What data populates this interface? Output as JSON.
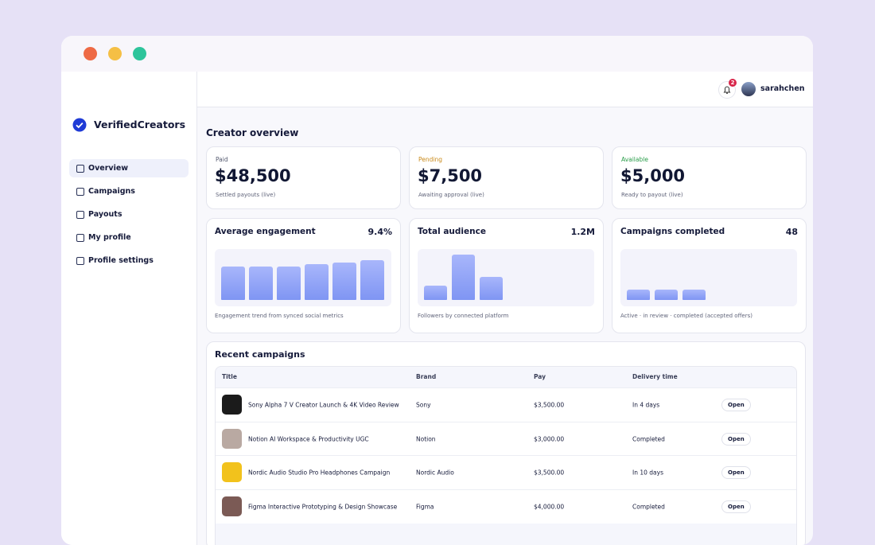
{
  "app": {
    "brand": "VerifiedCreators",
    "nav": [
      "Overview",
      "Campaigns",
      "Payouts",
      "My profile",
      "Profile settings"
    ],
    "user": {
      "name": "sarahchen",
      "notifications": 2
    },
    "overview_title": "Creator overview",
    "stats": [
      {
        "label": "Paid",
        "value": "$48,500",
        "note": "Settled payouts (live)"
      },
      {
        "label": "Pending",
        "value": "$7,500",
        "note": "Awaiting approval (live)"
      },
      {
        "label": "Available",
        "value": "$5,000",
        "note": "Ready to payout (live)"
      }
    ],
    "metrics": [
      {
        "title": "Average engagement",
        "value": "9.4%",
        "caption": "Engagement trend from synced social metrics"
      },
      {
        "title": "Total audience",
        "value": "1.2M",
        "caption": "Followers by connected platform"
      },
      {
        "title": "Campaigns completed",
        "value": "48",
        "caption": "Active · in review · completed (accepted offers)"
      }
    ],
    "campaigns": {
      "title": "Recent campaigns",
      "columns": [
        "Title",
        "Brand",
        "Pay",
        "Delivery time"
      ],
      "rows": [
        [
          "Sony Alpha 7 V Creator Launch & 4K Video Review",
          "Sony",
          "$3,500.00",
          "In 4 days",
          "Open"
        ],
        [
          "Notion AI Workspace & Productivity UGC",
          "Notion",
          "$3,000.00",
          "Completed",
          "Open"
        ],
        [
          "Nordic Audio Studio Pro Headphones Campaign",
          "Nordic Audio",
          "$3,500.00",
          "In 10 days",
          "Open"
        ],
        [
          "Figma Interactive Prototyping & Design Showcase",
          "Figma",
          "$4,000.00",
          "Completed",
          "Open"
        ]
      ]
    }
  }
}
